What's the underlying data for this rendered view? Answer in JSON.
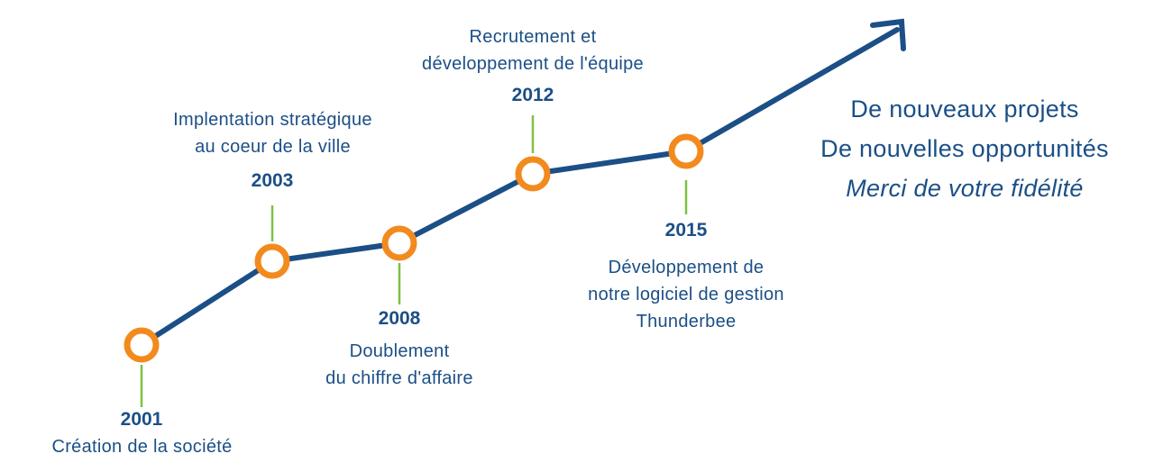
{
  "milestones": [
    {
      "year": "2001",
      "text": "Création de la société"
    },
    {
      "year": "2003",
      "text": "Implentation stratégique\nau coeur de la ville"
    },
    {
      "year": "2008",
      "text": "Doublement\ndu chiffre d'affaire"
    },
    {
      "year": "2012",
      "text": "Recrutement et\ndéveloppement de l'équipe"
    },
    {
      "year": "2015",
      "text": "Développement de\nnotre logiciel de gestion\nThunderbee"
    }
  ],
  "closing": {
    "line1": "De nouveaux projets",
    "line2": "De nouvelles opportunités",
    "line3": "Merci de votre fidélité"
  },
  "colors": {
    "line": "#1b4f86",
    "node": "#f28a1e",
    "connector": "#7cc242",
    "text": "#1b4f86"
  }
}
